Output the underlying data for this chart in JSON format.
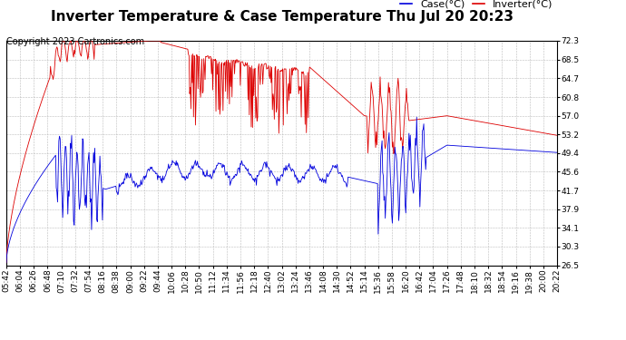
{
  "title": "Inverter Temperature & Case Temperature Thu Jul 20 20:23",
  "copyright": "Copyright 2023 Cartronics.com",
  "legend_case": "Case(°C)",
  "legend_inverter": "Inverter(°C)",
  "yticks": [
    26.5,
    30.3,
    34.1,
    37.9,
    41.7,
    45.6,
    49.4,
    53.2,
    57.0,
    60.8,
    64.7,
    68.5,
    72.3
  ],
  "xtick_labels": [
    "05:42",
    "06:04",
    "06:26",
    "06:48",
    "07:10",
    "07:32",
    "07:54",
    "08:16",
    "08:38",
    "09:00",
    "09:22",
    "09:44",
    "10:06",
    "10:28",
    "10:50",
    "11:12",
    "11:34",
    "11:56",
    "12:18",
    "12:40",
    "13:02",
    "13:24",
    "13:46",
    "14:08",
    "14:30",
    "14:52",
    "15:14",
    "15:36",
    "15:58",
    "16:20",
    "16:42",
    "17:04",
    "17:26",
    "17:48",
    "18:10",
    "18:32",
    "18:54",
    "19:16",
    "19:38",
    "20:00",
    "20:22"
  ],
  "background_color": "#ffffff",
  "plot_bg_color": "#ffffff",
  "grid_color": "#bbbbbb",
  "title_fontsize": 11,
  "copyright_fontsize": 7,
  "legend_fontsize": 8,
  "tick_fontsize": 6.5,
  "case_color": "#0000dd",
  "inverter_color": "#dd0000",
  "ylim": [
    26.5,
    72.3
  ],
  "n_points": 860
}
